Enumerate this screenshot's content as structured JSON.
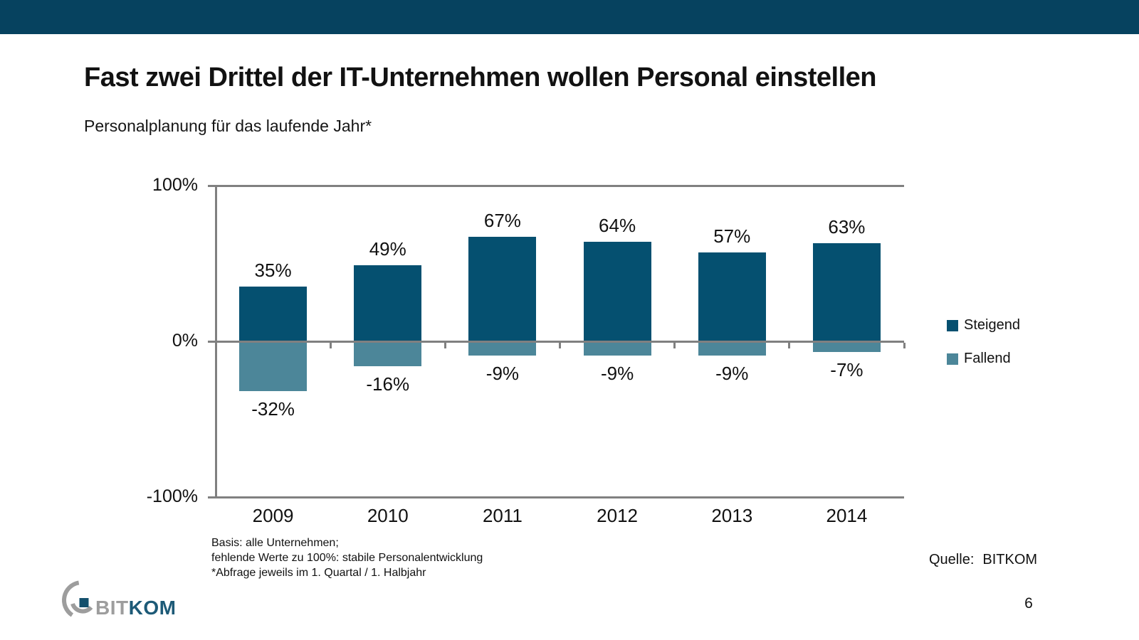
{
  "slide": {
    "title": "Fast zwei Drittel der IT-Unternehmen wollen Personal einstellen",
    "subtitle": "Personalplanung für das laufende Jahr*",
    "footnotes": [
      "Basis: alle Unternehmen;",
      "fehlende Werte zu 100%: stabile Personalentwicklung",
      "*Abfrage jeweils im 1. Quartal / 1. Halbjahr"
    ],
    "source_label": "Quelle:",
    "source_value": "BITKOM",
    "page_number": "6",
    "logo": {
      "text_gray": "BIT",
      "text_teal": "KOM"
    }
  },
  "colors": {
    "header_bar": "#06425f",
    "steigend": "#055070",
    "fallend": "#4c8699",
    "axis": "#808080",
    "logo_gray": "#9d9d9d",
    "logo_teal": "#1d5a77",
    "logo_square": "#14506d"
  },
  "chart_data": {
    "type": "bar",
    "title": "Personalplanung für das laufende Jahr*",
    "categories": [
      "2009",
      "2010",
      "2011",
      "2012",
      "2013",
      "2014"
    ],
    "series": [
      {
        "name": "Steigend",
        "color": "#055070",
        "values": [
          35,
          49,
          67,
          64,
          57,
          63
        ]
      },
      {
        "name": "Fallend",
        "color": "#4c8699",
        "values": [
          -32,
          -16,
          -9,
          -9,
          -9,
          -7
        ]
      }
    ],
    "value_suffix": "%",
    "xlabel": "",
    "ylabel": "",
    "ylim": [
      -100,
      100
    ],
    "y_ticks": [
      {
        "value": 100,
        "label": "100%"
      },
      {
        "value": 0,
        "label": "0%"
      },
      {
        "value": -100,
        "label": "-100%"
      }
    ],
    "grid": "horizontal-lines-at-ticks",
    "legend_position": "right"
  }
}
